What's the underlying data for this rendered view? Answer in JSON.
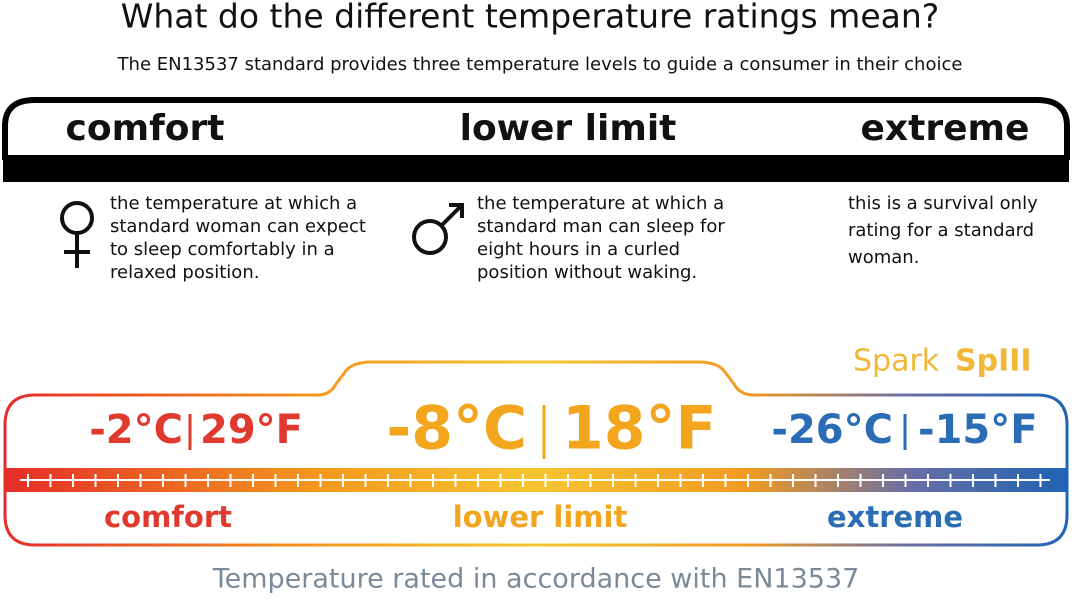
{
  "header": {
    "title": "What do the different temperature ratings mean?",
    "subtitle": "The EN13537 standard provides three temperature levels to guide a consumer in their choice"
  },
  "levels": [
    {
      "name": "comfort",
      "description": [
        "the temperature at which a",
        "standard woman can expect",
        "to sleep comfortably in a",
        "relaxed position."
      ]
    },
    {
      "name": "lower limit",
      "description": [
        "the temperature at which a",
        "standard man can sleep for",
        "eight hours in a curled",
        "position without waking."
      ]
    },
    {
      "name": "extreme",
      "description": [
        "this is a survival only",
        "rating for a standard",
        "woman."
      ]
    }
  ],
  "product": {
    "brand": "Spark",
    "model": "SpIII"
  },
  "ratings": [
    {
      "celsius": "-2°C",
      "fahrenheit": "29°F",
      "label": "comfort"
    },
    {
      "celsius": "-8°C",
      "fahrenheit": "18°F",
      "label": "lower limit"
    },
    {
      "celsius": "-26°C",
      "fahrenheit": "-15°F",
      "label": "extreme"
    }
  ],
  "footer": "Temperature rated in accordance with EN13537"
}
